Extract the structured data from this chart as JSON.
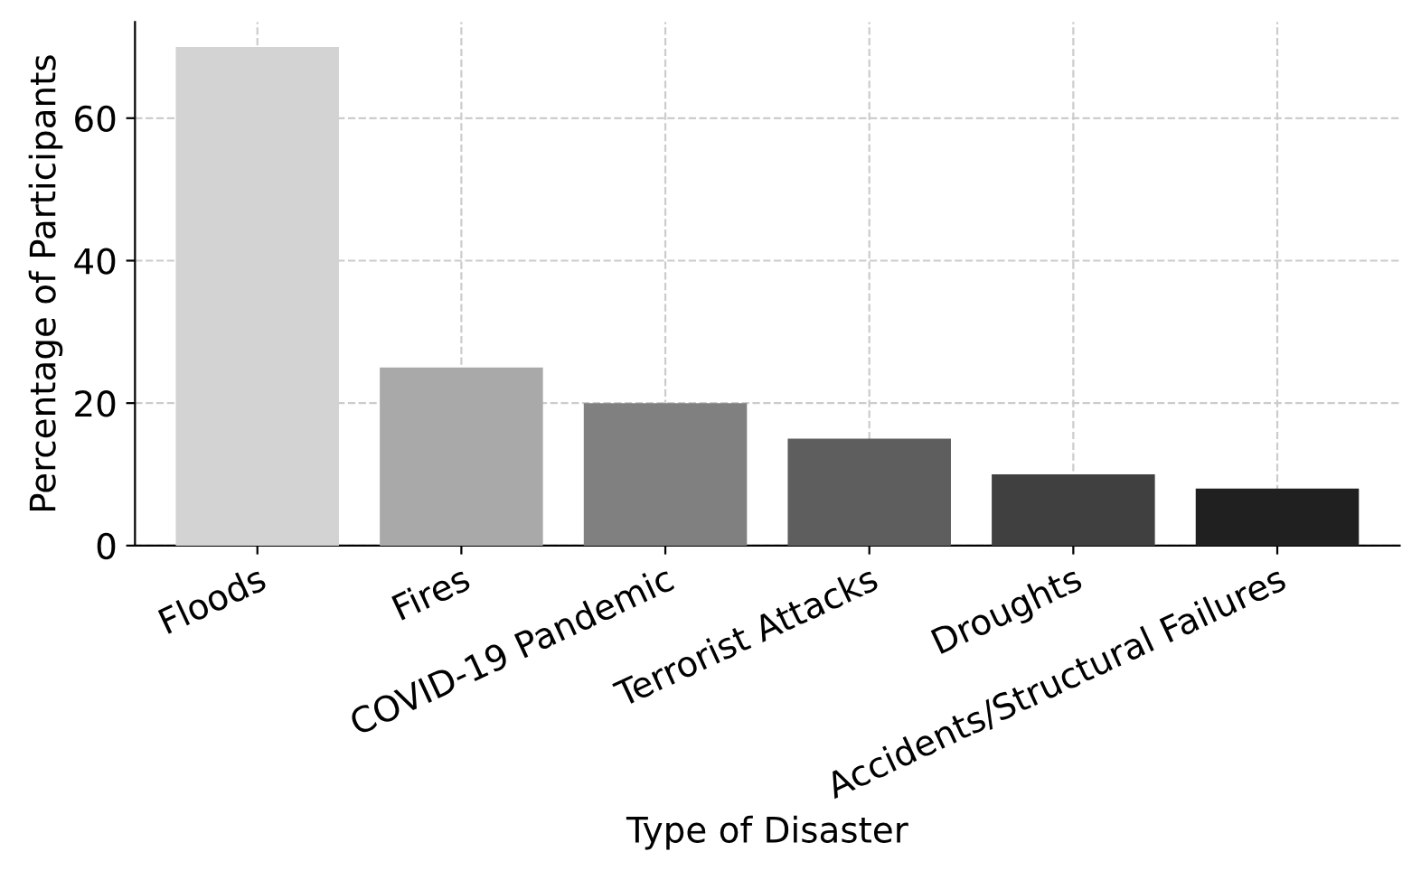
{
  "chart_data": {
    "type": "bar",
    "xlabel": "Type of Disaster",
    "ylabel": "Percentage of Participants",
    "categories": [
      "Floods",
      "Fires",
      "COVID-19 Pandemic",
      "Terrorist Attacks",
      "Droughts",
      "Accidents/Structural Failures"
    ],
    "values": [
      70,
      25,
      20,
      15,
      10,
      8
    ],
    "colors": [
      "#d3d3d3",
      "#a9a9a9",
      "#808080",
      "#5e5e5e",
      "#404040",
      "#202020"
    ],
    "ylim": [
      0,
      73.5
    ],
    "yticks": [
      0,
      20,
      40,
      60
    ],
    "grid": true
  }
}
